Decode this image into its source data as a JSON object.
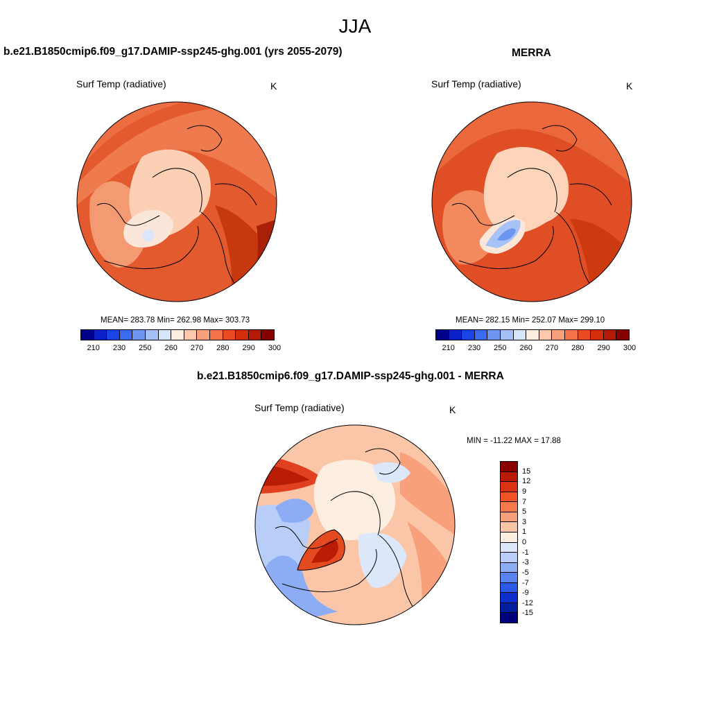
{
  "figure": {
    "season": "JJA"
  },
  "panels": {
    "model": {
      "title": "b.e21.B1850cmip6.f09_g17.DAMIP-ssp245-ghg.001 (yrs 2055-2079)",
      "variable": "Surf Temp (radiative)",
      "unit": "K",
      "stats": "MEAN= 283.78  Min= 262.98  Max= 303.73"
    },
    "obs": {
      "title": "MERRA",
      "variable": "Surf Temp (radiative)",
      "unit": "K",
      "stats": "MEAN= 282.15  Min= 252.07  Max= 299.10"
    },
    "diff": {
      "title": "b.e21.B1850cmip6.f09_g17.DAMIP-ssp245-ghg.001 - MERRA",
      "variable": "Surf Temp (radiative)",
      "unit": "K",
      "stats": "MIN = -11.22 MAX =  17.88"
    }
  },
  "colorbars": {
    "abs": {
      "tick_labels": [
        "210",
        "230",
        "250",
        "260",
        "270",
        "280",
        "290",
        "300"
      ],
      "colors": [
        "#00008a",
        "#0a22c8",
        "#1a44e6",
        "#3a6cf2",
        "#6c96f0",
        "#a4c0f6",
        "#d6e6fa",
        "#fdeee2",
        "#fbc8ac",
        "#f8a07c",
        "#f4744c",
        "#ec4a20",
        "#d42e0c",
        "#b41a06",
        "#860000"
      ]
    },
    "diff": {
      "tick_labels": [
        "15",
        "12",
        "9",
        "7",
        "5",
        "3",
        "1",
        "0",
        "-1",
        "-3",
        "-5",
        "-7",
        "-9",
        "-12",
        "-15"
      ],
      "colors": [
        "#8a0000",
        "#b81c04",
        "#dc3410",
        "#f25426",
        "#f67a4c",
        "#f8a07c",
        "#fbc6a8",
        "#fdeee2",
        "#dce8fa",
        "#b8cef8",
        "#8cacf4",
        "#5a84f0",
        "#2c5ae8",
        "#0c2ecc",
        "#001e9e",
        "#00007a"
      ]
    }
  }
}
